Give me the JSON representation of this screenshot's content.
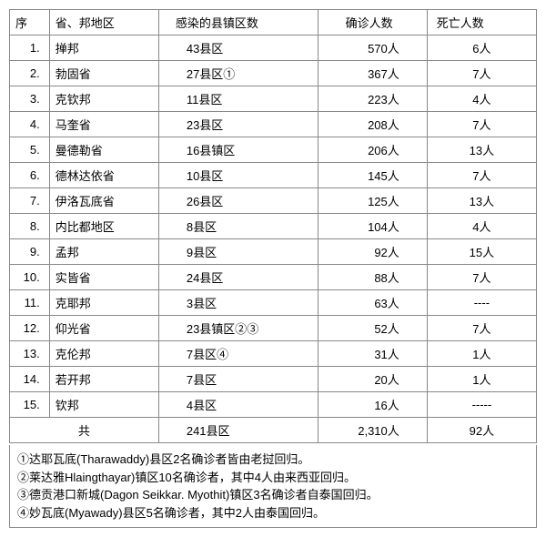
{
  "table": {
    "columns": {
      "seq": "序",
      "region": "省、邦地区",
      "infected": "感染的县镇区数",
      "confirmed": "确诊人数",
      "deaths": "死亡人数"
    },
    "rows": [
      {
        "seq": "1.",
        "region": "掸邦",
        "infected": "43县区",
        "confirmed": "570人",
        "deaths": "6人"
      },
      {
        "seq": "2.",
        "region": "勃固省",
        "infected": "27县区①",
        "confirmed": "367人",
        "deaths": "7人"
      },
      {
        "seq": "3.",
        "region": "克钦邦",
        "infected": "11县区",
        "confirmed": "223人",
        "deaths": "4人"
      },
      {
        "seq": "4.",
        "region": "马奎省",
        "infected": "23县区",
        "confirmed": "208人",
        "deaths": "7人"
      },
      {
        "seq": "5.",
        "region": "曼德勒省",
        "infected": "16县镇区",
        "confirmed": "206人",
        "deaths": "13人"
      },
      {
        "seq": "6.",
        "region": "德林达依省",
        "infected": "10县区",
        "confirmed": "145人",
        "deaths": "7人"
      },
      {
        "seq": "7.",
        "region": "伊洛瓦底省",
        "infected": "26县区",
        "confirmed": "125人",
        "deaths": "13人"
      },
      {
        "seq": "8.",
        "region": "内比都地区",
        "infected": "8县区",
        "confirmed": "104人",
        "deaths": "4人"
      },
      {
        "seq": "9.",
        "region": "孟邦",
        "infected": "9县区",
        "confirmed": "92人",
        "deaths": "15人"
      },
      {
        "seq": "10.",
        "region": "实皆省",
        "infected": "24县区",
        "confirmed": "88人",
        "deaths": "7人"
      },
      {
        "seq": "11.",
        "region": "克耶邦",
        "infected": "3县区",
        "confirmed": "63人",
        "deaths": "----"
      },
      {
        "seq": "12.",
        "region": "仰光省",
        "infected": "23县镇区②③",
        "confirmed": "52人",
        "deaths": "7人"
      },
      {
        "seq": "13.",
        "region": "克伦邦",
        "infected": "7县区④",
        "confirmed": "31人",
        "deaths": "1人"
      },
      {
        "seq": "14.",
        "region": "若开邦",
        "infected": "7县区",
        "confirmed": "20人",
        "deaths": "1人"
      },
      {
        "seq": "15.",
        "region": "钦邦",
        "infected": "4县区",
        "confirmed": "16人",
        "deaths": "-----"
      }
    ],
    "total": {
      "label": "共",
      "infected": "241县区",
      "confirmed": "2,310人",
      "deaths": "92人"
    }
  },
  "footnotes": {
    "n1": "①达耶瓦底(Tharawaddy)县区2名确诊者皆由老挝回归。",
    "n2": "②莱达雅Hlaingthayar)镇区10名确诊者，其中4人由来西亚回归。",
    "n3": "③德贡港口新城(Dagon Seikkar. Myothit)镇区3名确诊者自泰国回归。",
    "n4": "④妙瓦底(Myawady)县区5名确诊者，其中2人由泰国回归。"
  },
  "style": {
    "border_color": "#888888",
    "background": "#ffffff",
    "text_color": "#000000",
    "font_size_pt": 10
  }
}
